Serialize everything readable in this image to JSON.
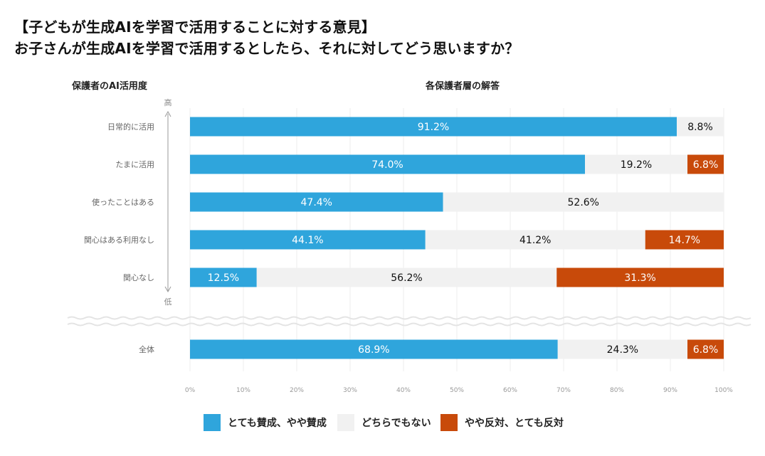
{
  "title_line1": "【子どもが生成AIを学習で活用することに対する意見】",
  "title_line2": "お子さんが生成AIを学習で活用するとしたら、それに対してどう思いますか？",
  "left_header": "保護者のAI活用度",
  "right_header": "各保護者層の解答",
  "axis_high": "高",
  "axis_low": "低",
  "colors": {
    "agree": "#2fa5dc",
    "neutral": "#f1f1f1",
    "disagree": "#c84a0a"
  },
  "chart_data": {
    "type": "bar",
    "orientation": "horizontal",
    "stacked": true,
    "categories": [
      "日常的に活用",
      "たまに活用",
      "使ったことはある",
      "関心はある利用なし",
      "関心なし",
      "全体"
    ],
    "series": [
      {
        "name": "とても賛成、やや賛成",
        "values": [
          91.2,
          74.0,
          47.4,
          44.1,
          12.5,
          68.9
        ],
        "labels": [
          "91.2%",
          "74.0%",
          "47.4%",
          "44.1%",
          "12.5%",
          "68.9%"
        ]
      },
      {
        "name": "どちらでもない",
        "values": [
          8.8,
          19.2,
          52.6,
          41.2,
          56.2,
          24.3
        ],
        "labels": [
          "8.8%",
          "19.2%",
          "52.6%",
          "41.2%",
          "56.2%",
          "24.3%"
        ]
      },
      {
        "name": "やや反対、とても反対",
        "values": [
          0,
          6.8,
          0,
          14.7,
          31.3,
          6.8
        ],
        "labels": [
          "",
          "6.8%",
          "",
          "14.7%",
          "31.3%",
          "6.8%"
        ]
      }
    ],
    "xlim": [
      0,
      100
    ],
    "xticks": [
      "0%",
      "10%",
      "20%",
      "30%",
      "40%",
      "50%",
      "60%",
      "70%",
      "80%",
      "90%",
      "100%"
    ],
    "grid": true,
    "legend_position": "bottom"
  }
}
